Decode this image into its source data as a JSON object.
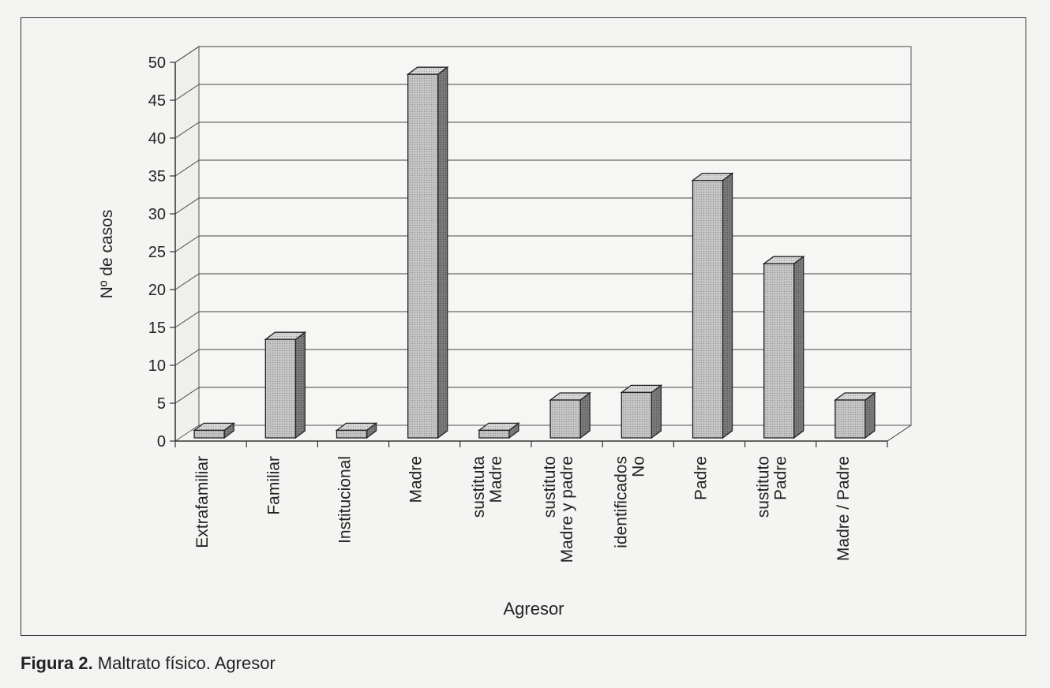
{
  "caption": {
    "label": "Figura 2.",
    "text": " Maltrato físico. Agresor"
  },
  "chart_data": {
    "type": "bar",
    "style": "3d",
    "title": "",
    "xlabel": "Agresor",
    "ylabel": "Nº de casos",
    "ylim": [
      0,
      50
    ],
    "yticks": [
      0,
      5,
      10,
      15,
      20,
      25,
      30,
      35,
      40,
      45,
      50
    ],
    "grid": true,
    "legend": "none",
    "categories": [
      [
        "Extrafamiliar"
      ],
      [
        "Familiar"
      ],
      [
        "Institucional"
      ],
      [
        "Madre"
      ],
      [
        "Madre",
        "sustituta"
      ],
      [
        "Madre y padre",
        "sustituto"
      ],
      [
        "No",
        "identificados"
      ],
      [
        "Padre"
      ],
      [
        "Padre",
        "sustituto"
      ],
      [
        "Madre / Padre"
      ]
    ],
    "values": [
      1,
      13,
      1,
      48,
      1,
      5,
      6,
      34,
      23,
      5
    ],
    "colors": {
      "bar_front": "#b9b9b9",
      "bar_top": "#d0d0d0",
      "bar_side": "#6e6e6e",
      "gridline": "#444444",
      "axis": "#333333"
    }
  }
}
